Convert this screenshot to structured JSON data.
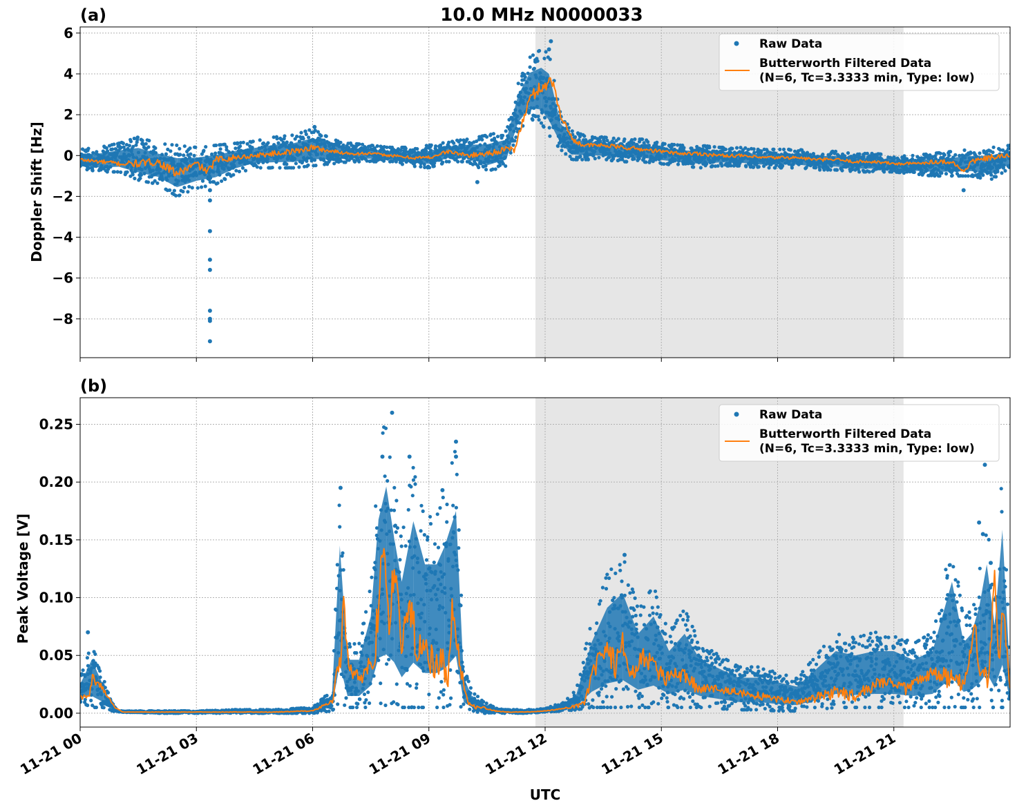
{
  "figure": {
    "title": "10.0 MHz N0000033",
    "xlabel": "UTC",
    "x_ticks": [
      "11-21 00",
      "11-21 03",
      "11-21 06",
      "11-21 09",
      "11-21 12",
      "11-21 15",
      "11-21 18",
      "11-21 21"
    ]
  },
  "colors": {
    "raw": "#1f77b4",
    "filtered": "#ff7f0e",
    "shade": "#e6e6e6",
    "grid": "#b0b0b0"
  },
  "chart_data": [
    {
      "type": "scatter",
      "panel_label": "(a)",
      "title": "10.0 MHz N0000033",
      "xlabel": "",
      "ylabel": "Doppler Shift [Hz]",
      "x_unit": "hours since 11-21 00 UTC",
      "xlim": [
        0,
        24
      ],
      "ylim": [
        -9.9,
        6.3
      ],
      "yticks": [
        6,
        4,
        2,
        0,
        -2,
        -4,
        -6,
        -8
      ],
      "ytick_labels": [
        "6",
        "4",
        "2",
        "0",
        "−2",
        "−4",
        "−6",
        "−8"
      ],
      "grid": true,
      "shaded_interval": [
        11.75,
        21.25
      ],
      "legend": {
        "placement": "top-right",
        "entries": [
          "Raw Data",
          "Butterworth Filtered Data",
          "(N=6, Tc=3.3333 min, Type: low)"
        ]
      },
      "series": [
        {
          "name": "Raw Data",
          "style": "dots",
          "x": [
            0.0,
            0.5,
            1.0,
            1.5,
            2.0,
            2.5,
            3.0,
            3.5,
            4.0,
            4.5,
            5.0,
            5.5,
            6.0,
            6.5,
            7.0,
            7.5,
            8.0,
            8.5,
            9.0,
            9.5,
            10.0,
            10.5,
            11.0,
            11.3,
            11.6,
            11.9,
            12.1,
            12.4,
            12.7,
            13.0,
            13.5,
            14.0,
            14.5,
            15.0,
            15.5,
            16.0,
            16.5,
            17.0,
            17.5,
            18.0,
            18.5,
            19.0,
            19.5,
            20.0,
            20.5,
            21.0,
            21.5,
            22.0,
            22.5,
            23.0,
            23.5,
            24.0
          ],
          "y_low": [
            -0.7,
            -0.8,
            -0.8,
            -1.2,
            -1.4,
            -2.0,
            -1.6,
            -1.4,
            -0.9,
            -0.6,
            -0.6,
            -0.6,
            -0.5,
            -0.4,
            -0.3,
            -0.3,
            -0.3,
            -0.5,
            -0.6,
            -0.3,
            -0.3,
            -0.8,
            -0.5,
            1.2,
            1.8,
            1.6,
            1.0,
            0.3,
            -0.2,
            -0.2,
            -0.2,
            -0.3,
            -0.3,
            -0.4,
            -0.5,
            -0.6,
            -0.5,
            -0.5,
            -0.6,
            -0.6,
            -0.6,
            -0.7,
            -0.7,
            -0.8,
            -0.8,
            -0.8,
            -0.9,
            -1.0,
            -1.0,
            -1.0,
            -1.2,
            -0.6
          ],
          "y_high": [
            0.3,
            0.4,
            0.6,
            0.9,
            0.6,
            0.5,
            0.4,
            0.5,
            0.6,
            0.7,
            0.9,
            1.0,
            1.3,
            0.8,
            0.6,
            0.5,
            0.4,
            0.4,
            0.5,
            0.7,
            0.8,
            1.0,
            1.2,
            3.5,
            4.8,
            5.2,
            5.0,
            2.0,
            1.2,
            1.0,
            0.9,
            0.8,
            0.8,
            0.6,
            0.5,
            0.5,
            0.4,
            0.4,
            0.3,
            0.3,
            0.3,
            0.2,
            0.2,
            0.1,
            0.1,
            0.0,
            0.0,
            0.1,
            0.2,
            0.3,
            0.4,
            0.5
          ],
          "outliers": [
            [
              3.35,
              -1.7
            ],
            [
              3.35,
              -2.2
            ],
            [
              3.35,
              -3.7
            ],
            [
              3.35,
              -5.1
            ],
            [
              3.35,
              -5.6
            ],
            [
              3.35,
              -7.6
            ],
            [
              3.35,
              -8.0
            ],
            [
              3.35,
              -8.1
            ],
            [
              3.35,
              -9.1
            ],
            [
              11.75,
              4.6
            ],
            [
              12.15,
              5.6
            ],
            [
              12.1,
              5.2
            ],
            [
              6.05,
              1.4
            ],
            [
              10.25,
              -1.3
            ],
            [
              22.8,
              -1.7
            ]
          ]
        },
        {
          "name": "Butterworth Filtered Data",
          "style": "line",
          "x": [
            0.0,
            0.5,
            1.0,
            1.5,
            2.0,
            2.5,
            3.0,
            3.3,
            3.5,
            4.0,
            4.5,
            5.0,
            5.5,
            6.0,
            6.5,
            7.0,
            7.5,
            8.0,
            8.5,
            9.0,
            9.5,
            10.0,
            10.5,
            11.0,
            11.2,
            11.4,
            11.6,
            11.8,
            12.0,
            12.2,
            12.4,
            12.7,
            13.0,
            13.5,
            14.0,
            14.5,
            15.0,
            15.5,
            16.0,
            16.5,
            17.0,
            17.5,
            18.0,
            18.5,
            19.0,
            19.5,
            20.0,
            20.5,
            21.0,
            21.5,
            22.0,
            22.5,
            22.8,
            23.0,
            23.5,
            24.0
          ],
          "y": [
            -0.2,
            -0.3,
            -0.4,
            -0.4,
            -0.3,
            -0.9,
            -0.4,
            -0.8,
            -0.2,
            -0.1,
            0.0,
            0.1,
            0.2,
            0.4,
            0.2,
            0.1,
            0.1,
            0.0,
            -0.1,
            -0.1,
            0.2,
            0.0,
            0.1,
            0.3,
            0.3,
            1.5,
            2.8,
            3.2,
            3.5,
            3.6,
            2.0,
            0.8,
            0.5,
            0.5,
            0.4,
            0.3,
            0.2,
            0.1,
            0.1,
            0.0,
            0.0,
            -0.1,
            -0.1,
            -0.1,
            -0.2,
            -0.2,
            -0.3,
            -0.3,
            -0.4,
            -0.4,
            -0.3,
            -0.3,
            -0.8,
            -0.3,
            -0.1,
            0.0
          ]
        }
      ]
    },
    {
      "type": "scatter",
      "panel_label": "(b)",
      "title": "",
      "xlabel": "UTC",
      "ylabel": "Peak Voltage [V]",
      "x_unit": "hours since 11-21 00 UTC",
      "xlim": [
        0,
        24
      ],
      "ylim": [
        -0.012,
        0.273
      ],
      "yticks": [
        0.25,
        0.2,
        0.15,
        0.1,
        0.05,
        0.0
      ],
      "ytick_labels": [
        "0.25",
        "0.20",
        "0.15",
        "0.10",
        "0.05",
        "0.00"
      ],
      "grid": true,
      "shaded_interval": [
        11.75,
        21.25
      ],
      "legend": {
        "placement": "top-right",
        "entries": [
          "Raw Data",
          "Butterworth Filtered Data",
          "(N=6, Tc=3.3333 min, Type: low)"
        ]
      },
      "series": [
        {
          "name": "Raw Data",
          "style": "dots",
          "x": [
            0.0,
            0.3,
            0.6,
            0.8,
            1.0,
            2.0,
            3.0,
            4.0,
            5.0,
            6.0,
            6.5,
            6.7,
            6.9,
            7.2,
            7.5,
            7.7,
            7.9,
            8.1,
            8.3,
            8.6,
            8.9,
            9.2,
            9.4,
            9.7,
            9.9,
            10.1,
            10.4,
            10.7,
            11.0,
            11.5,
            12.0,
            12.5,
            12.8,
            13.2,
            13.6,
            14.0,
            14.4,
            14.8,
            15.2,
            15.6,
            16.0,
            16.5,
            17.0,
            17.5,
            18.0,
            18.5,
            19.0,
            19.5,
            20.0,
            20.5,
            21.0,
            21.5,
            22.0,
            22.5,
            22.8,
            23.0,
            23.2,
            23.4,
            23.6,
            23.8,
            24.0
          ],
          "y_low": [
            0.01,
            0.005,
            0.005,
            0.002,
            0.001,
            0.0,
            0.0,
            0.0,
            0.0,
            0.0,
            0.002,
            0.01,
            0.005,
            0.005,
            0.005,
            0.01,
            0.005,
            0.01,
            0.005,
            0.005,
            0.005,
            0.005,
            0.005,
            0.01,
            0.003,
            0.002,
            0.0,
            0.0,
            0.0,
            0.0,
            0.001,
            0.002,
            0.003,
            0.005,
            0.005,
            0.005,
            0.005,
            0.005,
            0.005,
            0.005,
            0.005,
            0.004,
            0.003,
            0.003,
            0.002,
            0.002,
            0.003,
            0.005,
            0.005,
            0.005,
            0.005,
            0.005,
            0.005,
            0.005,
            0.005,
            0.005,
            0.005,
            0.005,
            0.005,
            0.005,
            0.005
          ],
          "y_high": [
            0.03,
            0.06,
            0.03,
            0.01,
            0.002,
            0.002,
            0.002,
            0.003,
            0.003,
            0.005,
            0.02,
            0.19,
            0.06,
            0.06,
            0.11,
            0.22,
            0.26,
            0.2,
            0.15,
            0.22,
            0.17,
            0.17,
            0.19,
            0.23,
            0.04,
            0.02,
            0.01,
            0.005,
            0.003,
            0.003,
            0.004,
            0.01,
            0.02,
            0.08,
            0.12,
            0.137,
            0.09,
            0.11,
            0.07,
            0.09,
            0.06,
            0.05,
            0.04,
            0.04,
            0.035,
            0.03,
            0.05,
            0.07,
            0.065,
            0.07,
            0.07,
            0.06,
            0.07,
            0.15,
            0.08,
            0.09,
            0.12,
            0.17,
            0.1,
            0.21,
            0.04
          ],
          "outliers": [
            [
              0.2,
              0.07
            ],
            [
              6.72,
              0.195
            ],
            [
              7.8,
              0.222
            ],
            [
              8.05,
              0.26
            ],
            [
              8.5,
              0.222
            ],
            [
              9.35,
              0.193
            ],
            [
              9.7,
              0.235
            ],
            [
              9.7,
              0.222
            ],
            [
              14.05,
              0.137
            ],
            [
              23.2,
              0.165
            ],
            [
              23.3,
              0.155
            ],
            [
              23.35,
              0.215
            ],
            [
              23.5,
              0.13
            ]
          ]
        },
        {
          "name": "Butterworth Filtered Data",
          "style": "line",
          "x": [
            0.0,
            0.2,
            0.3,
            0.5,
            0.7,
            0.9,
            1.1,
            2.0,
            3.0,
            4.0,
            5.0,
            6.0,
            6.5,
            6.7,
            6.8,
            6.9,
            7.0,
            7.3,
            7.6,
            7.8,
            8.0,
            8.1,
            8.3,
            8.5,
            8.7,
            8.9,
            9.1,
            9.3,
            9.5,
            9.6,
            9.8,
            10.0,
            10.2,
            10.4,
            10.7,
            11.0,
            11.5,
            12.0,
            12.5,
            12.8,
            13.0,
            13.2,
            13.4,
            13.6,
            13.8,
            14.0,
            14.2,
            14.5,
            14.8,
            15.1,
            15.4,
            15.8,
            16.2,
            16.6,
            17.0,
            17.5,
            18.0,
            18.5,
            19.0,
            19.5,
            20.0,
            20.3,
            20.6,
            21.0,
            21.3,
            21.6,
            22.0,
            22.4,
            22.8,
            23.0,
            23.1,
            23.2,
            23.3,
            23.4,
            23.5,
            23.6,
            23.7,
            23.8,
            24.0
          ],
          "y": [
            0.015,
            0.012,
            0.03,
            0.025,
            0.015,
            0.005,
            0.001,
            0.001,
            0.001,
            0.001,
            0.001,
            0.002,
            0.01,
            0.04,
            0.095,
            0.05,
            0.035,
            0.03,
            0.05,
            0.14,
            0.08,
            0.13,
            0.06,
            0.1,
            0.05,
            0.07,
            0.04,
            0.05,
            0.03,
            0.1,
            0.04,
            0.01,
            0.005,
            0.005,
            0.002,
            0.001,
            0.001,
            0.002,
            0.004,
            0.006,
            0.01,
            0.03,
            0.05,
            0.06,
            0.04,
            0.065,
            0.03,
            0.05,
            0.04,
            0.03,
            0.035,
            0.025,
            0.02,
            0.02,
            0.018,
            0.015,
            0.012,
            0.01,
            0.013,
            0.018,
            0.015,
            0.02,
            0.025,
            0.028,
            0.02,
            0.03,
            0.035,
            0.03,
            0.025,
            0.055,
            0.08,
            0.03,
            0.04,
            0.03,
            0.06,
            0.118,
            0.04,
            0.1,
            0.02
          ]
        }
      ]
    }
  ],
  "legend": {
    "raw_label": "Raw Data",
    "filtered_label": "Butterworth Filtered Data",
    "filtered_params": "(N=6, Tc=3.3333 min, Type: low)"
  }
}
